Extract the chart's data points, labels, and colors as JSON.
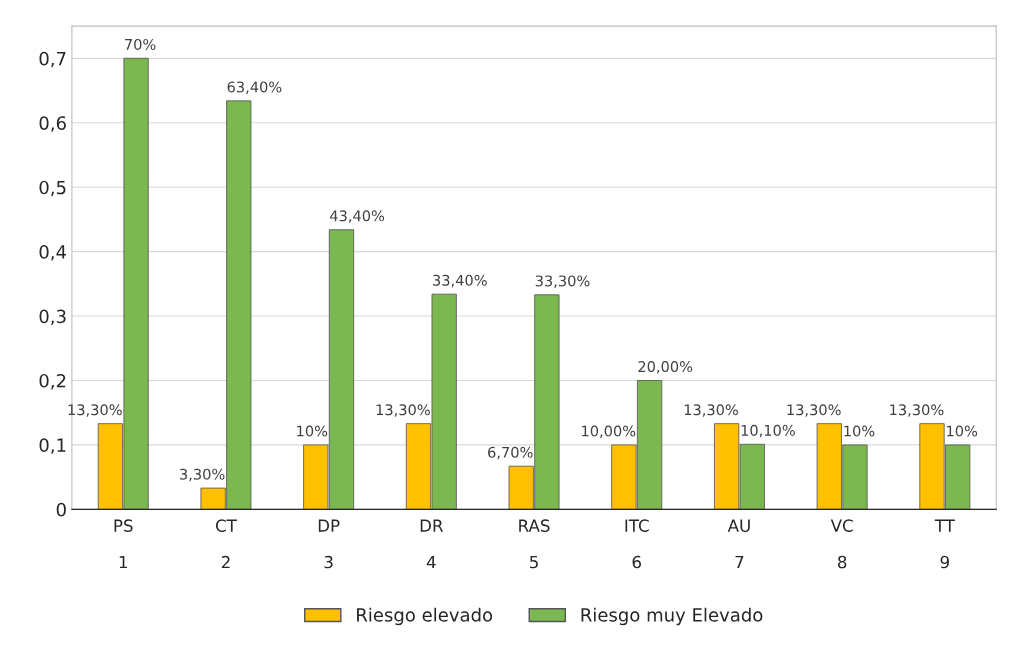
{
  "chart_data": {
    "type": "bar",
    "categories": [
      "PS\n1",
      "CT\n2",
      "DP\n3",
      "DR\n4",
      "RAS\n5",
      "ITC\n6",
      "AU\n7",
      "VC\n8",
      "TT\n9"
    ],
    "series": [
      {
        "name": "Riesgo elevado",
        "color": "#ffc000",
        "values": [
          0.133,
          0.033,
          0.1,
          0.133,
          0.067,
          0.1,
          0.133,
          0.133,
          0.133
        ],
        "value_labels": [
          "13,30%",
          "3,30%",
          "10%",
          "13,30%",
          "6,70%",
          "10,00%",
          "13,30%",
          "13,30%",
          "13,30%"
        ]
      },
      {
        "name": "Riesgo muy Elevado",
        "color": "#7cb850",
        "values": [
          0.7,
          0.634,
          0.434,
          0.334,
          0.333,
          0.2,
          0.101,
          0.1,
          0.1
        ],
        "value_labels": [
          "70%",
          "63,40%",
          "43,40%",
          "33,40%",
          "33,30%",
          "20,00%",
          "10,10%",
          "10%",
          "10%"
        ]
      }
    ],
    "ylim": [
      0,
      0.75
    ],
    "yticks": [
      0,
      {
        "value": 0.1,
        "label": "0,1"
      },
      {
        "value": 0.2,
        "label": "0,2"
      },
      {
        "value": 0.3,
        "label": "0,3"
      },
      {
        "value": 0.4,
        "label": "0,4"
      },
      {
        "value": 0.5,
        "label": "0,5"
      },
      {
        "value": 0.6,
        "label": "0,6"
      },
      {
        "value": 0.7,
        "label": "0,7"
      }
    ],
    "grid": "y",
    "legend": "bottom"
  }
}
